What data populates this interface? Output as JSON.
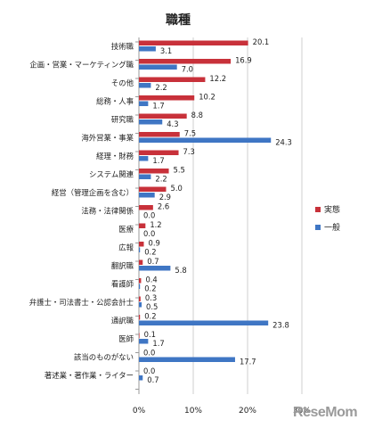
{
  "chart_data": {
    "type": "bar",
    "orientation": "horizontal",
    "title": "職種",
    "categories": [
      "技術職",
      "企画・営業・マーケティング職",
      "その他",
      "総務・人事",
      "研究職",
      "海外営業・事業",
      "経理・財務",
      "システム関連",
      "経営（管理企画を含む）",
      "法務・法律関係",
      "医療",
      "広報",
      "翻訳職",
      "看護師",
      "弁護士・司法書士・公認会計士",
      "通訳職",
      "医師",
      "該当のものがない",
      "著述業・著作業・ライター"
    ],
    "series": [
      {
        "name": "実態",
        "color": "#c8313a",
        "values": [
          20.1,
          16.9,
          12.2,
          10.2,
          8.8,
          7.5,
          7.3,
          5.5,
          5.0,
          2.6,
          1.2,
          0.9,
          0.7,
          0.4,
          0.3,
          0.2,
          0.1,
          0.0,
          0.0
        ]
      },
      {
        "name": "一般",
        "color": "#3f76c4",
        "values": [
          3.1,
          7.0,
          2.2,
          1.7,
          4.3,
          24.3,
          1.7,
          2.2,
          2.9,
          0.0,
          0.0,
          0.2,
          5.8,
          0.2,
          0.5,
          23.8,
          1.7,
          17.7,
          0.7
        ]
      }
    ],
    "value_labels": {
      "実態": [
        "20.1",
        "16.9",
        "12.2",
        "10.2",
        "8.8",
        "7.5",
        "7.3",
        "5.5",
        "5.0",
        "2.6",
        "1.2",
        "0.9",
        "0.7",
        "0.4",
        "0.3",
        "0.2",
        "0.1",
        "0.0",
        "0.0"
      ],
      "一般": [
        "3.1",
        "7.0",
        "2.2",
        "1.7",
        "4.3",
        "24.3",
        "1.7",
        "2.2",
        "2.9",
        "0.0",
        "0.0",
        "0.2",
        "5.8",
        "0.2",
        "0.5",
        "23.8",
        "1.7",
        "17.7",
        "0.7"
      ]
    },
    "xlim": [
      0,
      30
    ],
    "xticks": [
      "0%",
      "10%",
      "20%",
      "30%"
    ],
    "grid": true,
    "legend_position": "right"
  },
  "watermark": "ReseMom"
}
